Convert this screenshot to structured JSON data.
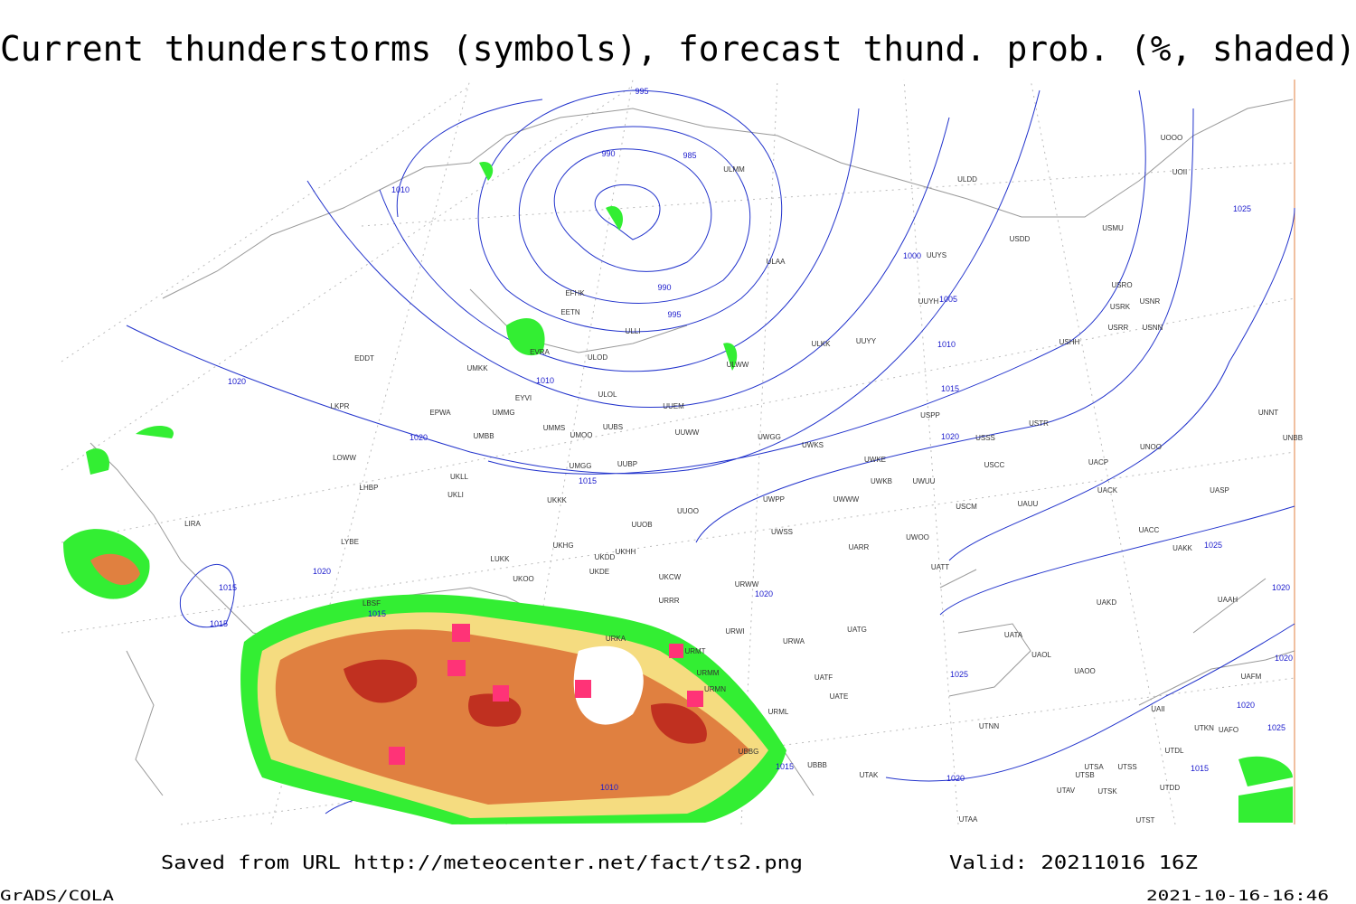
{
  "header": {
    "title": "Current thunderstorms (symbols), forecast thund. prob. (%, shaded)"
  },
  "map": {
    "isobar_labels": [
      995,
      990,
      985,
      1010,
      1000,
      1005,
      990,
      995,
      1010,
      1010,
      1020,
      1015,
      1020,
      1020,
      1015,
      1025,
      1025,
      1020,
      1015,
      1015,
      1015,
      1020,
      1020,
      1025,
      1020,
      1020,
      1025,
      1015,
      1015,
      1010,
      1020
    ],
    "stations": [
      "ULMM",
      "ULDD",
      "ULAA",
      "UUYS",
      "USDD",
      "USMU",
      "UOOO",
      "UOII",
      "USRO",
      "USRK",
      "USNR",
      "USRR",
      "USNN",
      "EFHK",
      "EETN",
      "ULLI",
      "UUYH",
      "USHH",
      "ULKK",
      "UUYY",
      "ULOD",
      "EVRA",
      "UMKK",
      "EDDT",
      "ULWW",
      "ULOL",
      "EYVI",
      "UUEM",
      "EPWA",
      "UMMG",
      "LKPR",
      "USPP",
      "USTR",
      "UNNT",
      "UNBB",
      "UMMS",
      "UMOO",
      "UUBS",
      "UUWW",
      "UWGG",
      "UWKS",
      "USSS",
      "UNOO",
      "LOWW",
      "UMBB",
      "UKLL",
      "UMGG",
      "UUBP",
      "UWKE",
      "UWKB",
      "UWUU",
      "USCC",
      "UACP",
      "UKLI",
      "LHBP",
      "UKKK",
      "UWPP",
      "UWWW",
      "USCM",
      "UAUU",
      "UACK",
      "UASP",
      "UUOO",
      "UUOB",
      "LIRA",
      "UWSS",
      "UACC",
      "LYBE",
      "UKHG",
      "UKDD",
      "UKHH",
      "UARR",
      "UWOO",
      "UAKK",
      "LUKK",
      "UATT",
      "UKOO",
      "UKDE",
      "UKCW",
      "URWW",
      "UAAH",
      "LBSF",
      "URRR",
      "UAKD",
      "URWI",
      "UATG",
      "URKA",
      "URWA",
      "UATA",
      "UAOL",
      "URMT",
      "URMM",
      "UAOO",
      "UATF",
      "URMN",
      "UATE",
      "UAFM",
      "URML",
      "UTNN",
      "UAII",
      "UTKN",
      "UAFO",
      "UBBG",
      "UTDL",
      "UTSA",
      "UTSS",
      "UBBB",
      "UTAK",
      "UTSB",
      "UTAV",
      "UTSK",
      "UTDD",
      "UTAA",
      "UTST"
    ]
  },
  "footer": {
    "source": "Saved from URL http://meteocenter.net/fact/ts2.png",
    "valid": "Valid: 20211016 16Z",
    "software": "GrADS/COLA",
    "timestamp": "2021-10-16-16:46"
  }
}
